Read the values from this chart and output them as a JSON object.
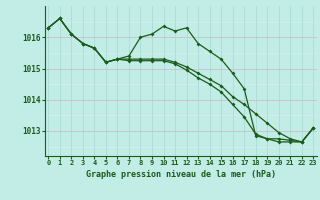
{
  "title": "Graphe pression niveau de la mer (hPa)",
  "bg_color": "#c2ece6",
  "grid_color_major": "#a8d8d0",
  "grid_color_minor": "#b8e4de",
  "line_color": "#1a5c1a",
  "x_labels": [
    "0",
    "1",
    "2",
    "3",
    "4",
    "5",
    "6",
    "7",
    "8",
    "9",
    "10",
    "11",
    "12",
    "13",
    "14",
    "15",
    "16",
    "17",
    "18",
    "19",
    "20",
    "21",
    "22",
    "23"
  ],
  "yticks": [
    1013,
    1014,
    1015,
    1016
  ],
  "ylim": [
    1012.2,
    1017.0
  ],
  "xlim": [
    -0.3,
    23.3
  ],
  "line1": [
    1016.3,
    1016.6,
    1016.1,
    1015.8,
    1015.65,
    1015.2,
    1015.3,
    1015.4,
    1016.0,
    1016.1,
    1016.35,
    1016.2,
    1016.3,
    1015.8,
    1015.55,
    1015.3,
    1014.85,
    1014.35,
    1012.85,
    1012.75,
    1012.75,
    1012.7,
    1012.65,
    1013.1
  ],
  "line2": [
    1016.3,
    1016.6,
    1016.1,
    1015.8,
    1015.65,
    1015.2,
    1015.3,
    1015.3,
    1015.3,
    1015.3,
    1015.3,
    1015.2,
    1015.05,
    1014.85,
    1014.65,
    1014.45,
    1014.1,
    1013.85,
    1013.55,
    1013.25,
    1012.95,
    1012.75,
    1012.65,
    1013.1
  ],
  "line3": [
    1016.3,
    1016.6,
    1016.1,
    1015.8,
    1015.65,
    1015.2,
    1015.3,
    1015.25,
    1015.25,
    1015.25,
    1015.25,
    1015.15,
    1014.95,
    1014.7,
    1014.5,
    1014.25,
    1013.85,
    1013.45,
    1012.9,
    1012.75,
    1012.65,
    1012.65,
    1012.65,
    1013.1
  ]
}
